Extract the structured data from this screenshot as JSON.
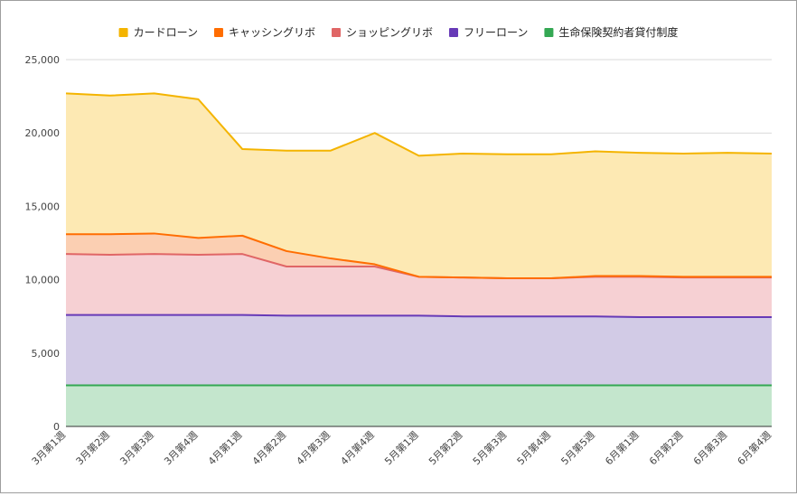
{
  "chart_data": {
    "type": "area",
    "stacked": true,
    "title": "",
    "xlabel": "",
    "ylabel": "",
    "ylim": [
      0,
      25000
    ],
    "yticks": [
      0,
      5000,
      10000,
      15000,
      20000,
      25000
    ],
    "ytick_labels": [
      "0",
      "5,000",
      "10,000",
      "15,000",
      "20,000",
      "25,000"
    ],
    "grid": true,
    "legend_position": "top",
    "categories": [
      "3月第1週",
      "3月第2週",
      "3月第3週",
      "3月第4週",
      "4月第1週",
      "4月第2週",
      "4月第3週",
      "4月第4週",
      "5月第1週",
      "5月第2週",
      "5月第3週",
      "5月第4週",
      "5月第5週",
      "6月第1週",
      "6月第2週",
      "6月第3週",
      "6月第4週"
    ],
    "series": [
      {
        "name": "生命保険契約者貸付制度",
        "color": "#34a853",
        "fill": "#c4e6cd",
        "values": [
          2800,
          2800,
          2800,
          2800,
          2800,
          2800,
          2800,
          2800,
          2800,
          2800,
          2800,
          2800,
          2800,
          2800,
          2800,
          2800,
          2800
        ]
      },
      {
        "name": "フリーローン",
        "color": "#673ab7",
        "fill": "#d2cbe6",
        "values": [
          4800,
          4800,
          4800,
          4800,
          4800,
          4750,
          4750,
          4750,
          4750,
          4700,
          4700,
          4700,
          4700,
          4650,
          4650,
          4650,
          4650
        ]
      },
      {
        "name": "ショッピングリボ",
        "color": "#e06666",
        "fill": "#f6d0d3",
        "values": [
          4150,
          4100,
          4150,
          4100,
          4150,
          3350,
          3350,
          3350,
          2650,
          2650,
          2600,
          2600,
          2700,
          2750,
          2700,
          2700,
          2700
        ]
      },
      {
        "name": "キャッシングリボ",
        "color": "#ff6d01",
        "fill": "#fbcfb2",
        "values": [
          1350,
          1400,
          1400,
          1150,
          1250,
          1050,
          550,
          150,
          0,
          0,
          0,
          0,
          50,
          50,
          50,
          50,
          50
        ]
      },
      {
        "name": "カードローン",
        "color": "#f4b400",
        "fill": "#fde9b3",
        "values": [
          9600,
          9450,
          9550,
          9450,
          5900,
          6850,
          7350,
          8950,
          8250,
          8450,
          8450,
          8450,
          8500,
          8400,
          8400,
          8450,
          8400
        ]
      }
    ],
    "legend_order": [
      "カードローン",
      "キャッシングリボ",
      "ショッピングリボ",
      "フリーローン",
      "生命保険契約者貸付制度"
    ]
  }
}
